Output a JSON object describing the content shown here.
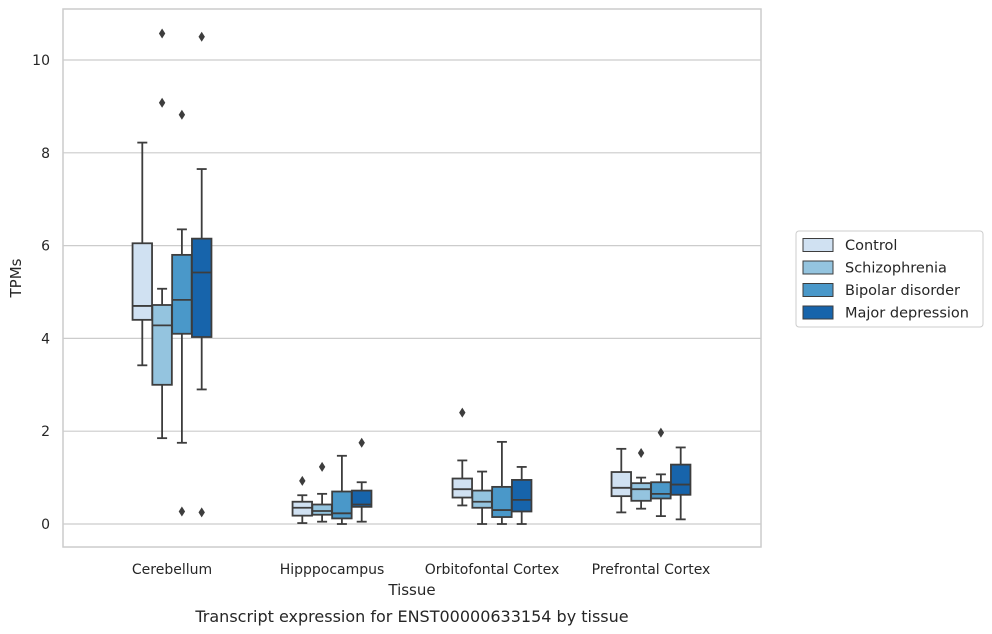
{
  "chart_data": {
    "type": "box",
    "title": "",
    "caption": "Transcript expression for ENST00000633154 by tissue",
    "xlabel": "Tissue",
    "ylabel": "TPMs",
    "ylim": [
      -0.5,
      11.1
    ],
    "yticks": [
      0,
      2,
      4,
      6,
      8,
      10
    ],
    "grid": "horizontal",
    "legend_position": "right",
    "categories": [
      "Cerebellum",
      "Hipppocampus",
      "Orbitofontal Cortex",
      "Prefrontal Cortex"
    ],
    "series": [
      {
        "name": "Control",
        "color": "#d0e1f2",
        "boxes": [
          {
            "whislo": 3.42,
            "q1": 4.4,
            "med": 4.7,
            "q3": 6.05,
            "whishi": 8.22,
            "fliers": []
          },
          {
            "whislo": 0.02,
            "q1": 0.18,
            "med": 0.35,
            "q3": 0.48,
            "whishi": 0.62,
            "fliers": [
              0.93
            ]
          },
          {
            "whislo": 0.4,
            "q1": 0.57,
            "med": 0.75,
            "q3": 0.98,
            "whishi": 1.37,
            "fliers": [
              2.4
            ]
          },
          {
            "whislo": 0.25,
            "q1": 0.6,
            "med": 0.78,
            "q3": 1.12,
            "whishi": 1.62,
            "fliers": []
          }
        ]
      },
      {
        "name": "Schizophrenia",
        "color": "#94c4df",
        "boxes": [
          {
            "whislo": 1.85,
            "q1": 3.0,
            "med": 4.28,
            "q3": 4.72,
            "whishi": 5.07,
            "fliers": [
              10.57,
              9.08
            ]
          },
          {
            "whislo": 0.05,
            "q1": 0.2,
            "med": 0.28,
            "q3": 0.42,
            "whishi": 0.65,
            "fliers": [
              1.23
            ]
          },
          {
            "whislo": 0.0,
            "q1": 0.35,
            "med": 0.48,
            "q3": 0.72,
            "whishi": 1.13,
            "fliers": []
          },
          {
            "whislo": 0.33,
            "q1": 0.5,
            "med": 0.75,
            "q3": 0.88,
            "whishi": 1.0,
            "fliers": [
              1.53
            ]
          }
        ]
      },
      {
        "name": "Bipolar disorder",
        "color": "#4a98c9",
        "boxes": [
          {
            "whislo": 1.75,
            "q1": 4.1,
            "med": 4.83,
            "q3": 5.8,
            "whishi": 6.35,
            "fliers": [
              8.82,
              0.27
            ]
          },
          {
            "whislo": 0.0,
            "q1": 0.12,
            "med": 0.23,
            "q3": 0.7,
            "whishi": 1.47,
            "fliers": []
          },
          {
            "whislo": 0.0,
            "q1": 0.15,
            "med": 0.3,
            "q3": 0.8,
            "whishi": 1.77,
            "fliers": []
          },
          {
            "whislo": 0.17,
            "q1": 0.55,
            "med": 0.65,
            "q3": 0.9,
            "whishi": 1.07,
            "fliers": [
              1.97
            ]
          }
        ]
      },
      {
        "name": "Major depression",
        "color": "#1764ab",
        "boxes": [
          {
            "whislo": 2.9,
            "q1": 4.03,
            "med": 5.42,
            "q3": 6.15,
            "whishi": 7.65,
            "fliers": [
              10.5,
              0.25
            ]
          },
          {
            "whislo": 0.05,
            "q1": 0.37,
            "med": 0.42,
            "q3": 0.72,
            "whishi": 0.9,
            "fliers": [
              1.75
            ]
          },
          {
            "whislo": 0.0,
            "q1": 0.27,
            "med": 0.52,
            "q3": 0.95,
            "whishi": 1.23,
            "fliers": []
          },
          {
            "whislo": 0.1,
            "q1": 0.63,
            "med": 0.85,
            "q3": 1.28,
            "whishi": 1.65,
            "fliers": []
          }
        ]
      }
    ]
  }
}
